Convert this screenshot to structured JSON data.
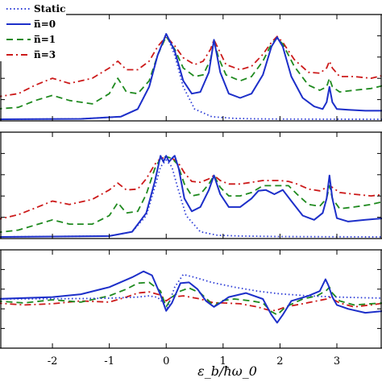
{
  "chart_data": {
    "type": "line",
    "xlabel": "ε_b/ħω_0",
    "x_ticks": [
      -2,
      -1,
      0,
      1,
      2,
      3
    ],
    "x_tick_labels": [
      "-2",
      "-1",
      "0",
      "1",
      "2",
      "3"
    ],
    "xlim": [
      -2.95,
      3.85
    ],
    "legend": {
      "placement": "top-left",
      "entries": [
        "Static",
        "n̅=0",
        "n̅=1",
        "n̅=3"
      ]
    },
    "series_styles": [
      {
        "name": "Static",
        "color": "#2a3ad6",
        "dash": "dotted"
      },
      {
        "name": "n̅=0",
        "color": "#1d2fc9",
        "dash": "solid"
      },
      {
        "name": "n̅=1",
        "color": "#1f8a1f",
        "dash": "dashed"
      },
      {
        "name": "n̅=3",
        "color": "#cc1a1a",
        "dash": "dashdot"
      }
    ],
    "panels": [
      {
        "ylim": [
          0,
          1
        ],
        "series": [
          {
            "name": "Static",
            "x": [
              -3.0,
              -1.5,
              -0.8,
              -0.5,
              -0.3,
              -0.15,
              0.0,
              0.15,
              0.3,
              0.5,
              0.8,
              1.2,
              1.6,
              2.0,
              3.0,
              3.85
            ],
            "y": [
              0.0,
              0.005,
              0.03,
              0.12,
              0.38,
              0.75,
              1.0,
              0.75,
              0.38,
              0.12,
              0.03,
              0.01,
              0.005,
              0.003,
              0.001,
              0.0
            ]
          },
          {
            "name": "n̅=0",
            "x": [
              -3.0,
              -1.5,
              -0.8,
              -0.5,
              -0.3,
              -0.15,
              0.0,
              0.15,
              0.3,
              0.45,
              0.6,
              0.75,
              0.84,
              0.95,
              1.1,
              1.3,
              1.5,
              1.7,
              1.85,
              1.95,
              2.05,
              2.2,
              2.4,
              2.6,
              2.75,
              2.82,
              2.87,
              2.92,
              3.0,
              3.2,
              3.5,
              3.85
            ],
            "y": [
              0.0,
              0.005,
              0.03,
              0.12,
              0.38,
              0.75,
              1.0,
              0.8,
              0.45,
              0.3,
              0.32,
              0.55,
              0.93,
              0.55,
              0.3,
              0.25,
              0.3,
              0.52,
              0.85,
              0.96,
              0.85,
              0.5,
              0.25,
              0.15,
              0.12,
              0.2,
              0.38,
              0.2,
              0.12,
              0.11,
              0.1,
              0.1
            ]
          },
          {
            "name": "n̅=1",
            "x": [
              -3.0,
              -2.6,
              -2.3,
              -2.0,
              -1.7,
              -1.3,
              -1.0,
              -0.85,
              -0.7,
              -0.5,
              -0.3,
              -0.15,
              0.0,
              0.15,
              0.3,
              0.5,
              0.65,
              0.78,
              0.84,
              0.92,
              1.05,
              1.3,
              1.5,
              1.7,
              1.85,
              1.95,
              2.05,
              2.25,
              2.5,
              2.7,
              2.82,
              2.87,
              2.92,
              3.05,
              3.3,
              3.6,
              3.85
            ],
            "y": [
              0.12,
              0.14,
              0.22,
              0.28,
              0.22,
              0.18,
              0.3,
              0.48,
              0.32,
              0.3,
              0.45,
              0.75,
              0.97,
              0.82,
              0.6,
              0.5,
              0.52,
              0.7,
              0.92,
              0.72,
              0.52,
              0.45,
              0.5,
              0.68,
              0.88,
              0.95,
              0.88,
              0.62,
              0.4,
              0.34,
              0.38,
              0.48,
              0.38,
              0.32,
              0.34,
              0.36,
              0.4
            ]
          },
          {
            "name": "n̅=3",
            "x": [
              -3.0,
              -2.6,
              -2.3,
              -2.0,
              -1.7,
              -1.3,
              -1.0,
              -0.85,
              -0.7,
              -0.5,
              -0.3,
              -0.15,
              0.0,
              0.15,
              0.3,
              0.5,
              0.65,
              0.78,
              0.84,
              0.92,
              1.05,
              1.3,
              1.5,
              1.7,
              1.85,
              1.95,
              2.05,
              2.25,
              2.5,
              2.7,
              2.82,
              2.87,
              2.92,
              3.05,
              3.3,
              3.6,
              3.85
            ],
            "y": [
              0.26,
              0.3,
              0.4,
              0.48,
              0.42,
              0.48,
              0.6,
              0.68,
              0.58,
              0.58,
              0.68,
              0.85,
              0.97,
              0.86,
              0.72,
              0.64,
              0.68,
              0.82,
              0.93,
              0.82,
              0.64,
              0.58,
              0.62,
              0.76,
              0.9,
              0.97,
              0.9,
              0.7,
              0.55,
              0.54,
              0.6,
              0.68,
              0.6,
              0.5,
              0.5,
              0.48,
              0.52
            ]
          }
        ]
      },
      {
        "ylim": [
          0,
          1
        ],
        "series": [
          {
            "name": "Static",
            "x": [
              -3.0,
              -1.0,
              -0.6,
              -0.35,
              -0.2,
              -0.1,
              0.0,
              0.1,
              0.2,
              0.35,
              0.6,
              0.9,
              1.3,
              2.0,
              3.0,
              3.85
            ],
            "y": [
              0.0,
              0.01,
              0.06,
              0.25,
              0.58,
              0.82,
              0.9,
              0.82,
              0.58,
              0.25,
              0.06,
              0.02,
              0.01,
              0.005,
              0.002,
              0.0
            ]
          },
          {
            "name": "n̅=0",
            "x": [
              -3.0,
              -1.0,
              -0.6,
              -0.35,
              -0.2,
              -0.1,
              -0.05,
              0.0,
              0.05,
              0.1,
              0.15,
              0.22,
              0.32,
              0.45,
              0.6,
              0.75,
              0.84,
              0.95,
              1.1,
              1.3,
              1.5,
              1.62,
              1.75,
              1.9,
              2.05,
              2.2,
              2.4,
              2.6,
              2.75,
              2.82,
              2.87,
              2.92,
              3.0,
              3.2,
              3.5,
              3.85
            ],
            "y": [
              0.0,
              0.01,
              0.06,
              0.28,
              0.65,
              0.95,
              0.88,
              0.95,
              0.88,
              0.92,
              0.95,
              0.8,
              0.45,
              0.3,
              0.35,
              0.55,
              0.72,
              0.5,
              0.35,
              0.35,
              0.45,
              0.54,
              0.55,
              0.5,
              0.55,
              0.42,
              0.25,
              0.2,
              0.28,
              0.45,
              0.72,
              0.45,
              0.22,
              0.18,
              0.2,
              0.22
            ]
          },
          {
            "name": "n̅=1",
            "x": [
              -3.0,
              -2.6,
              -2.3,
              -2.0,
              -1.7,
              -1.3,
              -1.0,
              -0.85,
              -0.7,
              -0.5,
              -0.35,
              -0.2,
              -0.1,
              0.0,
              0.1,
              0.2,
              0.32,
              0.45,
              0.6,
              0.75,
              0.84,
              0.95,
              1.1,
              1.3,
              1.5,
              1.7,
              1.85,
              2.0,
              2.15,
              2.3,
              2.5,
              2.7,
              2.82,
              2.87,
              2.92,
              3.05,
              3.3,
              3.6,
              3.85
            ],
            "y": [
              0.05,
              0.08,
              0.14,
              0.2,
              0.15,
              0.15,
              0.25,
              0.4,
              0.28,
              0.3,
              0.5,
              0.8,
              0.92,
              0.94,
              0.92,
              0.85,
              0.62,
              0.48,
              0.5,
              0.62,
              0.72,
              0.58,
              0.48,
              0.48,
              0.52,
              0.6,
              0.6,
              0.6,
              0.6,
              0.5,
              0.38,
              0.36,
              0.45,
              0.6,
              0.45,
              0.33,
              0.35,
              0.38,
              0.42
            ]
          },
          {
            "name": "n̅=3",
            "x": [
              -3.0,
              -2.6,
              -2.3,
              -2.0,
              -1.7,
              -1.3,
              -1.0,
              -0.85,
              -0.7,
              -0.5,
              -0.35,
              -0.2,
              -0.1,
              0.0,
              0.1,
              0.2,
              0.32,
              0.45,
              0.6,
              0.75,
              0.84,
              0.95,
              1.1,
              1.3,
              1.5,
              1.7,
              1.85,
              2.0,
              2.15,
              2.3,
              2.5,
              2.7,
              2.82,
              2.87,
              2.92,
              3.05,
              3.3,
              3.6,
              3.85
            ],
            "y": [
              0.2,
              0.26,
              0.34,
              0.42,
              0.38,
              0.44,
              0.55,
              0.63,
              0.55,
              0.56,
              0.68,
              0.85,
              0.92,
              0.93,
              0.92,
              0.88,
              0.75,
              0.65,
              0.64,
              0.68,
              0.72,
              0.66,
              0.62,
              0.62,
              0.64,
              0.66,
              0.66,
              0.66,
              0.65,
              0.62,
              0.56,
              0.54,
              0.58,
              0.6,
              0.58,
              0.52,
              0.5,
              0.48,
              0.5
            ]
          }
        ]
      },
      {
        "ylim": [
          -1,
          1
        ],
        "series": [
          {
            "name": "Static",
            "x": [
              -3.0,
              -1.5,
              -1.0,
              -0.5,
              -0.3,
              -0.15,
              -0.05,
              0.0,
              0.05,
              0.15,
              0.3,
              0.5,
              0.8,
              1.2,
              1.6,
              2.0,
              2.5,
              3.0,
              3.5,
              3.85
            ],
            "y": [
              0.0,
              0.01,
              0.02,
              0.05,
              0.08,
              0.04,
              -0.1,
              -0.3,
              -0.1,
              0.3,
              0.62,
              0.55,
              0.42,
              0.3,
              0.2,
              0.13,
              0.08,
              0.05,
              0.03,
              0.02
            ]
          },
          {
            "name": "n̅=0",
            "x": [
              -3.0,
              -2.0,
              -1.5,
              -1.0,
              -0.6,
              -0.4,
              -0.25,
              -0.1,
              0.0,
              0.1,
              0.25,
              0.4,
              0.55,
              0.7,
              0.84,
              0.95,
              1.1,
              1.4,
              1.7,
              1.85,
              1.95,
              2.05,
              2.2,
              2.5,
              2.7,
              2.8,
              2.85,
              2.92,
              3.0,
              3.2,
              3.5,
              3.85
            ],
            "y": [
              0.0,
              0.05,
              0.12,
              0.3,
              0.55,
              0.7,
              0.6,
              0.1,
              -0.3,
              -0.1,
              0.4,
              0.42,
              0.25,
              -0.05,
              -0.2,
              -0.1,
              0.05,
              0.15,
              0.0,
              -0.4,
              -0.6,
              -0.4,
              -0.05,
              0.08,
              0.2,
              0.5,
              0.35,
              0.05,
              -0.15,
              -0.25,
              -0.35,
              -0.3
            ]
          },
          {
            "name": "n̅=1",
            "x": [
              -3.0,
              -2.5,
              -2.0,
              -1.5,
              -1.0,
              -0.7,
              -0.5,
              -0.3,
              -0.1,
              0.0,
              0.1,
              0.25,
              0.4,
              0.6,
              0.75,
              0.84,
              0.95,
              1.2,
              1.5,
              1.7,
              1.85,
              1.95,
              2.1,
              2.4,
              2.65,
              2.82,
              2.87,
              2.92,
              3.05,
              3.3,
              3.6,
              3.85
            ],
            "y": [
              -0.05,
              -0.1,
              -0.02,
              -0.08,
              0.08,
              0.25,
              0.4,
              0.42,
              0.2,
              -0.2,
              0.05,
              0.2,
              0.28,
              0.15,
              -0.05,
              -0.2,
              -0.05,
              0.0,
              -0.05,
              -0.1,
              -0.32,
              -0.4,
              -0.2,
              0.0,
              0.08,
              0.22,
              0.3,
              0.15,
              -0.05,
              -0.15,
              -0.12,
              -0.1
            ]
          },
          {
            "name": "n̅=3",
            "x": [
              -3.0,
              -2.5,
              -2.0,
              -1.5,
              -1.0,
              -0.7,
              -0.5,
              -0.3,
              -0.1,
              0.0,
              0.1,
              0.3,
              0.6,
              0.84,
              1.0,
              1.3,
              1.6,
              1.85,
              1.95,
              2.1,
              2.4,
              2.65,
              2.82,
              2.87,
              2.92,
              3.05,
              3.3,
              3.6,
              3.85
            ],
            "y": [
              -0.1,
              -0.15,
              -0.12,
              -0.05,
              -0.08,
              0.05,
              0.15,
              0.18,
              0.1,
              -0.05,
              0.05,
              0.08,
              0.0,
              -0.1,
              -0.1,
              -0.12,
              -0.2,
              -0.3,
              -0.28,
              -0.2,
              -0.12,
              -0.05,
              0.0,
              0.05,
              0.0,
              -0.1,
              -0.2,
              -0.15,
              -0.1
            ]
          }
        ]
      }
    ]
  }
}
